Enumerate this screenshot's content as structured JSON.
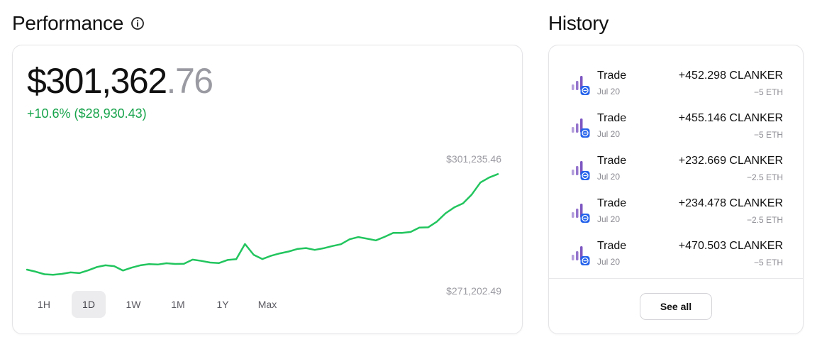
{
  "performance": {
    "title": "Performance",
    "info_icon": "info-icon",
    "value_int": "$301,362",
    "value_dec": ".76",
    "change": "+10.6% ($28,930.43)",
    "accent_color": "#22c55e",
    "change_color": "#16a34a",
    "high_label": "$301,235.46",
    "low_label": "$271,202.49",
    "ranges": [
      "1H",
      "1D",
      "1W",
      "1M",
      "1Y",
      "Max"
    ],
    "active_range": "1D"
  },
  "chart_data": {
    "type": "line",
    "title": "",
    "xlabel": "",
    "ylabel": "",
    "ylim": [
      271202.49,
      301235.46
    ],
    "grid": false,
    "series": [
      {
        "values": [
          274100,
          273550,
          272850,
          272700,
          272950,
          273350,
          273150,
          273900,
          274800,
          275300,
          275050,
          273850,
          274650,
          275300,
          275600,
          275500,
          275850,
          275650,
          275700,
          276850,
          276500,
          276050,
          275900,
          276750,
          276950,
          281100,
          278150,
          277000,
          277900,
          278550,
          279050,
          279750,
          280000,
          279500,
          279950,
          280550,
          281050,
          282400,
          283000,
          282550,
          282100,
          283050,
          284150,
          284150,
          284400,
          285600,
          285650,
          287200,
          289500,
          291100,
          292200,
          294600,
          297900,
          299250,
          300200
        ]
      }
    ]
  },
  "history": {
    "title": "History",
    "items": [
      {
        "type": "Trade",
        "date": "Jul 20",
        "amount": "+452.298 CLANKER",
        "cost": "−5 ETH",
        "icon": "trade-token-icon"
      },
      {
        "type": "Trade",
        "date": "Jul 20",
        "amount": "+455.146 CLANKER",
        "cost": "−5 ETH",
        "icon": "trade-token-icon"
      },
      {
        "type": "Trade",
        "date": "Jul 20",
        "amount": "+232.669 CLANKER",
        "cost": "−2.5 ETH",
        "icon": "trade-token-icon"
      },
      {
        "type": "Trade",
        "date": "Jul 20",
        "amount": "+234.478 CLANKER",
        "cost": "−2.5 ETH",
        "icon": "trade-token-icon"
      },
      {
        "type": "Trade",
        "date": "Jul 20",
        "amount": "+470.503 CLANKER",
        "cost": "−5 ETH",
        "icon": "trade-token-icon"
      }
    ],
    "see_all_label": "See all"
  }
}
